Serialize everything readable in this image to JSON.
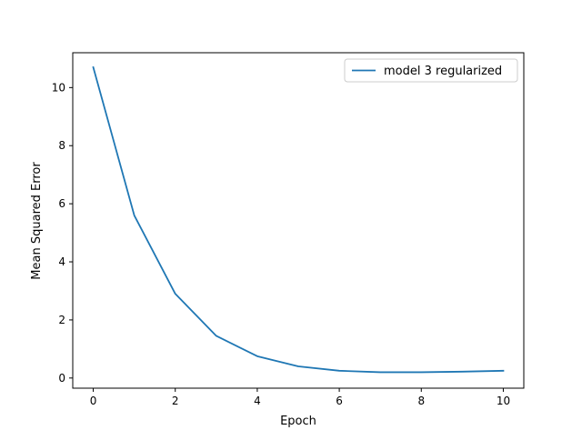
{
  "chart_data": {
    "type": "line",
    "title": "",
    "xlabel": "Epoch",
    "ylabel": "Mean Squared Error",
    "xlim": [
      -0.5,
      10.5
    ],
    "ylim": [
      -0.35,
      11.2
    ],
    "xticks": [
      0,
      2,
      4,
      6,
      8,
      10
    ],
    "yticks": [
      0,
      2,
      4,
      6,
      8,
      10
    ],
    "grid": false,
    "legend_position": "top-right",
    "series": [
      {
        "name": "model 3 regularized",
        "color": "#1f77b4",
        "x": [
          0,
          1,
          2,
          3,
          4,
          5,
          6,
          7,
          8,
          9,
          10
        ],
        "y": [
          10.7,
          5.6,
          2.9,
          1.45,
          0.75,
          0.4,
          0.25,
          0.2,
          0.2,
          0.22,
          0.25
        ]
      }
    ]
  }
}
